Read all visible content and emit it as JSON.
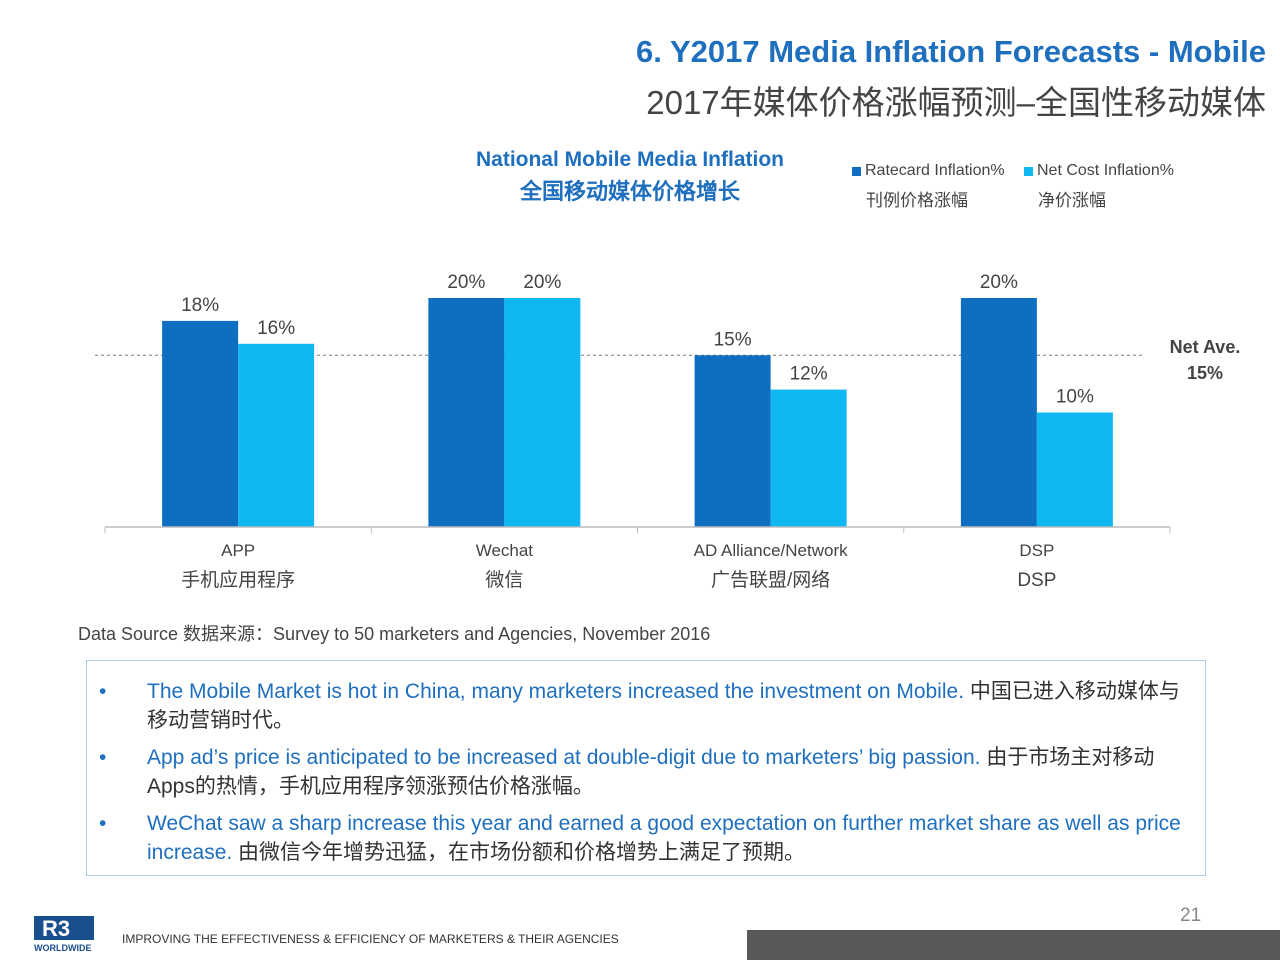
{
  "header": {
    "title_en": "6. Y2017 Media Inflation Forecasts - Mobile",
    "title_cn": "2017年媒体价格涨幅预测–全国性移动媒体"
  },
  "chart_data": {
    "type": "bar",
    "title": "National Mobile Media Inflation",
    "subtitle": "全国移动媒体价格增长",
    "categories": [
      "APP",
      "Wechat",
      "AD Alliance/Network",
      "DSP"
    ],
    "categories_cn": [
      "手机应用程序",
      "微信",
      "广告联盟/网络",
      "DSP"
    ],
    "series": [
      {
        "name": "Ratecard Inflation%",
        "name_cn": "刊例价格涨幅",
        "color": "#0e6fc2",
        "values": [
          18,
          20,
          15,
          20
        ],
        "labels": [
          "18%",
          "20%",
          "15%",
          "20%"
        ]
      },
      {
        "name": "Net Cost Inflation%",
        "name_cn": "净价涨幅",
        "color": "#0fb8f2",
        "values": [
          16,
          20,
          12,
          10
        ],
        "labels": [
          "16%",
          "20%",
          "12%",
          "10%"
        ]
      }
    ],
    "ylim": [
      0,
      20
    ],
    "reference_line": {
      "value": 15,
      "label_line1": "Net Ave.",
      "label_line2": "15%"
    },
    "legend_position": "top-right",
    "grid": false
  },
  "source": "Data Source 数据来源：Survey to 50 marketers and Agencies, November 2016",
  "notes": [
    {
      "bullet": "•",
      "en": "The Mobile Market is hot in China, many marketers increased the investment on Mobile.",
      "cn": " 中国已进入移动媒体与移动营销时代。"
    },
    {
      "bullet": "•",
      "en": "App ad’s price is anticipated to be increased at double-digit due to marketers’ big passion.",
      "cn": " 由于市场主对移动Apps的热情，手机应用程序领涨预估价格涨幅。"
    },
    {
      "bullet": "•",
      "en": "WeChat saw a sharp increase this year and earned a good expectation on further market share as well as price increase.",
      "cn": " 由微信今年增势迅猛，在市场份额和价格增势上满足了预期。"
    }
  ],
  "footer": {
    "page_number": "21",
    "tagline": "IMPROVING THE EFFECTIVENESS & EFFICIENCY OF MARKETERS & THEIR AGENCIES",
    "logo_text": "R3",
    "logo_sub": "WORLDWIDE"
  }
}
